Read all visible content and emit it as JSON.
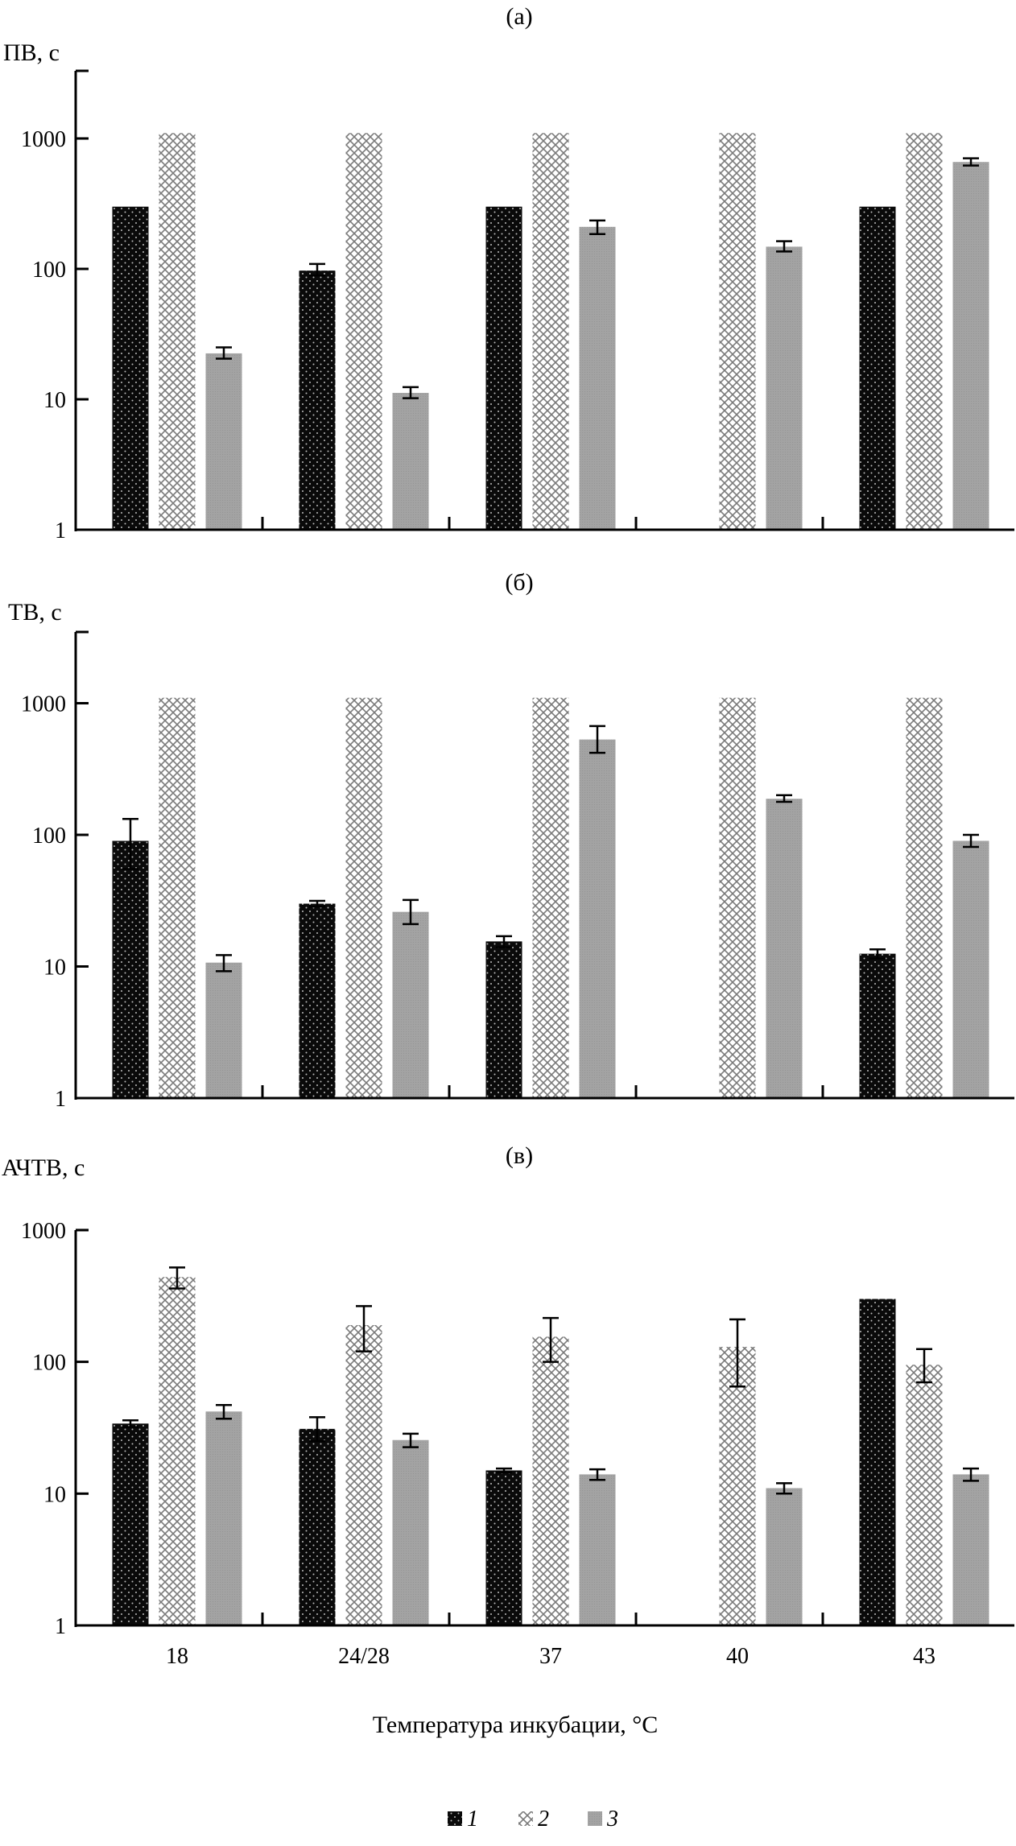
{
  "figure": {
    "xlabel": "Температура инкубации, °C",
    "legend": [
      {
        "label": "1",
        "pattern": "dots-on-black"
      },
      {
        "label": "2",
        "pattern": "crosshatch-gray"
      },
      {
        "label": "3",
        "pattern": "solid-gray"
      }
    ],
    "colors": {
      "series1": "#0a0a0a",
      "series2": "#7a7a7a",
      "series3": "#a3a3a3",
      "axis": "#000000"
    }
  },
  "chart_data": [
    {
      "type": "bar",
      "panel_label": "(а)",
      "ylabel": "ПВ, с",
      "yscale": "log",
      "ylim": [
        1,
        3000
      ],
      "yticks": [
        "1",
        "10",
        "100",
        "1000"
      ],
      "categories": [
        "18",
        "24/28",
        "37",
        "40",
        "43"
      ],
      "xlabel": "Температура инкубации, °C",
      "series": [
        {
          "name": "1",
          "values": [
            300,
            97,
            300,
            null,
            300
          ],
          "err_plus": [
            0,
            12,
            0,
            0,
            0
          ],
          "err_minus": [
            0,
            8,
            0,
            0,
            0
          ]
        },
        {
          "name": "2",
          "values": [
            1100,
            1100,
            1100,
            1100,
            1100
          ],
          "err_plus": [
            0,
            0,
            0,
            0,
            0
          ],
          "err_minus": [
            0,
            0,
            0,
            0,
            0
          ]
        },
        {
          "name": "3",
          "values": [
            22.5,
            11.2,
            210,
            148,
            660
          ],
          "err_plus": [
            2.5,
            1.2,
            25,
            15,
            45
          ],
          "err_minus": [
            2,
            1,
            25,
            12,
            40
          ]
        }
      ]
    },
    {
      "type": "bar",
      "panel_label": "(б)",
      "ylabel": "ТВ, с",
      "yscale": "log",
      "ylim": [
        1,
        3000
      ],
      "yticks": [
        "1",
        "10",
        "100",
        "1000"
      ],
      "categories": [
        "18",
        "24/28",
        "37",
        "40",
        "43"
      ],
      "xlabel": "Температура инкубации, °C",
      "series": [
        {
          "name": "1",
          "values": [
            90,
            30,
            15.5,
            null,
            12.5
          ],
          "err_plus": [
            42,
            1.5,
            1.5,
            0,
            1
          ],
          "err_minus": [
            35,
            1.5,
            1.5,
            0,
            1
          ]
        },
        {
          "name": "2",
          "values": [
            1100,
            1100,
            1100,
            1100,
            1100
          ],
          "err_plus": [
            0,
            0,
            0,
            0,
            0
          ],
          "err_minus": [
            0,
            0,
            0,
            0,
            0
          ]
        },
        {
          "name": "3",
          "values": [
            10.7,
            26,
            530,
            188,
            90
          ],
          "err_plus": [
            1.5,
            6,
            140,
            12,
            10
          ],
          "err_minus": [
            1.5,
            5,
            110,
            10,
            9
          ]
        }
      ]
    },
    {
      "type": "bar",
      "panel_label": "(в)",
      "ylabel": "АЧТВ, с",
      "yscale": "log",
      "ylim": [
        1,
        1000
      ],
      "yticks": [
        "1",
        "10",
        "100",
        "1000"
      ],
      "categories": [
        "18",
        "24/28",
        "37",
        "40",
        "43"
      ],
      "xlabel": "Температура инкубации, °C",
      "series": [
        {
          "name": "1",
          "values": [
            34,
            31,
            15,
            null,
            300
          ],
          "err_plus": [
            2,
            7,
            0.5,
            0,
            0
          ],
          "err_minus": [
            2,
            6,
            0.5,
            0,
            0
          ]
        },
        {
          "name": "2",
          "values": [
            440,
            190,
            155,
            130,
            95
          ],
          "err_plus": [
            80,
            75,
            60,
            80,
            30
          ],
          "err_minus": [
            80,
            70,
            55,
            65,
            25
          ]
        },
        {
          "name": "3",
          "values": [
            42,
            25.5,
            14,
            11,
            14
          ],
          "err_plus": [
            5,
            3,
            1.3,
            1,
            1.5
          ],
          "err_minus": [
            5,
            3,
            1.3,
            1,
            1.5
          ]
        }
      ]
    }
  ]
}
